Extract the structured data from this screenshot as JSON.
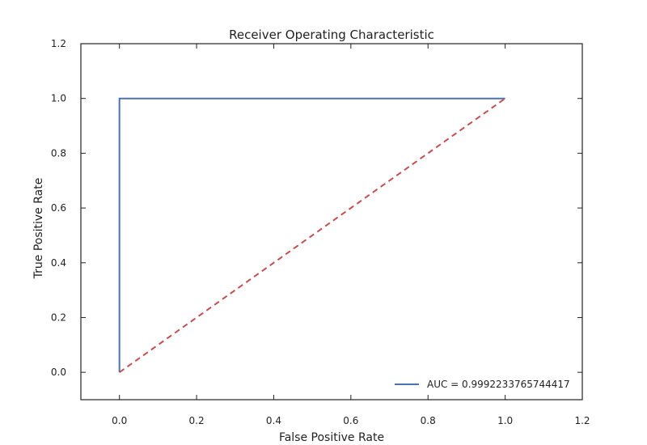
{
  "chart_data": {
    "type": "line",
    "title": "Receiver Operating Characteristic",
    "xlabel": "False Positive Rate",
    "ylabel": "True Positive Rate",
    "xlim": [
      -0.1,
      1.2
    ],
    "ylim": [
      -0.1,
      1.2
    ],
    "xticks": [
      0.0,
      0.2,
      0.4,
      0.6,
      0.8,
      1.0,
      1.2
    ],
    "yticks": [
      0.0,
      0.2,
      0.4,
      0.6,
      0.8,
      1.0,
      1.2
    ],
    "xtick_labels": [
      "0.0",
      "0.2",
      "0.4",
      "0.6",
      "0.8",
      "1.0",
      "1.2"
    ],
    "ytick_labels": [
      "0.0",
      "0.2",
      "0.4",
      "0.6",
      "0.8",
      "1.0",
      "1.2"
    ],
    "grid": false,
    "legend_position": "bottom-right",
    "series": [
      {
        "name": "AUC = 0.9992233765744417",
        "style": "solid",
        "color": "#4c72b0",
        "x": [
          0.0,
          0.0,
          1.0
        ],
        "y": [
          0.0,
          1.0,
          1.0
        ]
      },
      {
        "style": "dashed",
        "color": "#c44e52",
        "x": [
          0.0,
          1.0
        ],
        "y": [
          0.0,
          1.0
        ]
      }
    ]
  }
}
